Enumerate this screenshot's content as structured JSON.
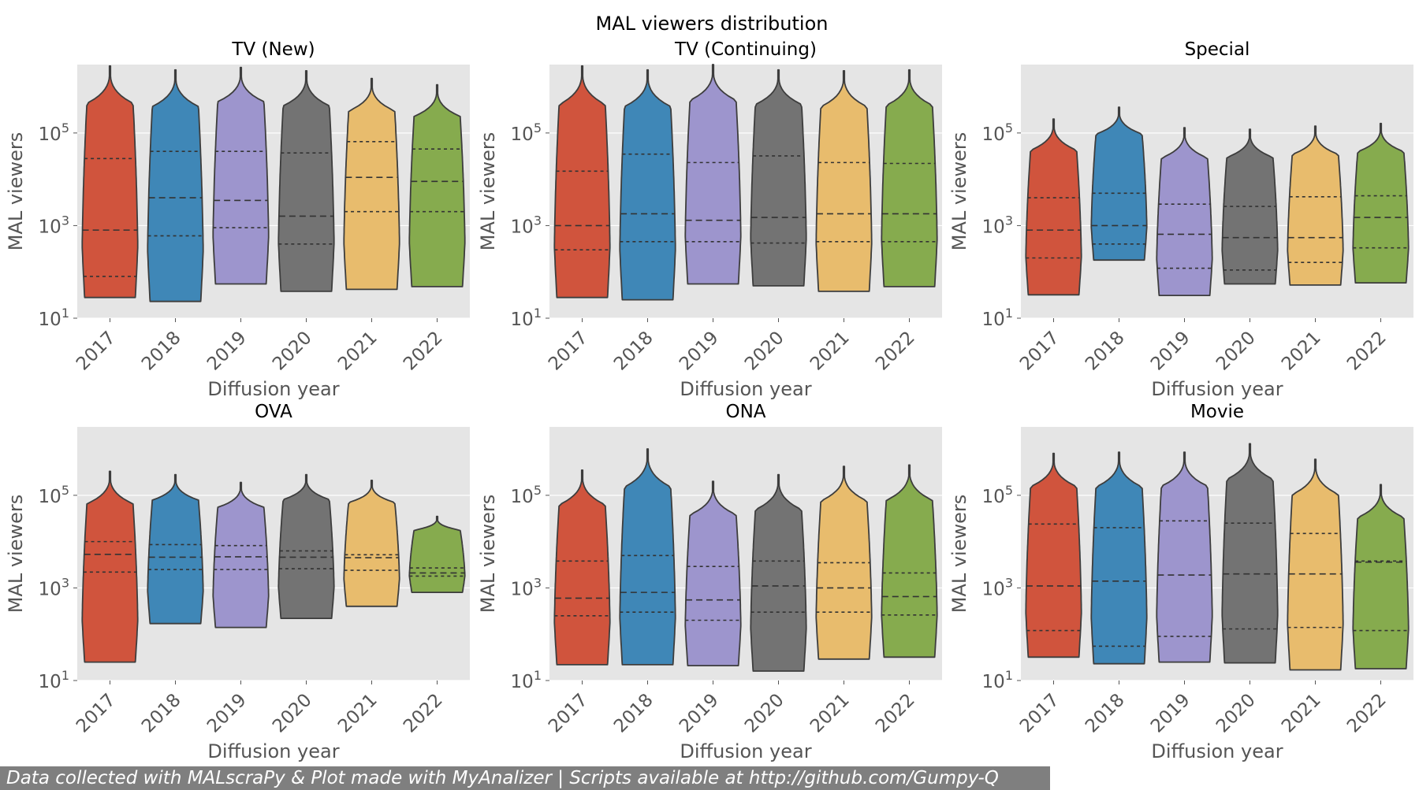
{
  "figure_title": "MAL viewers distribution",
  "footer_text": "Data collected with MALscraPy & Plot made with MyAnalizer | Scripts available at http://github.com/Gumpy-Q",
  "colors": [
    "#d0543d",
    "#3f87b7",
    "#9d95cd",
    "#737373",
    "#e8bc6d",
    "#86ab4e"
  ],
  "chart_data": [
    {
      "type": "violin",
      "title": "TV (New)",
      "xlabel": "Diffusion year",
      "ylabel": "MAL viewers",
      "yscale": "log",
      "ylim": [
        10,
        3000000
      ],
      "yticks": [
        "10^1",
        "10^3",
        "10^5"
      ],
      "categories": [
        "2017",
        "2018",
        "2019",
        "2020",
        "2021",
        "2022"
      ],
      "series": [
        {
          "category": "2017",
          "min": 28,
          "max": 2800000,
          "q1": 80,
          "median": 800,
          "q3": 28000
        },
        {
          "category": "2018",
          "min": 23,
          "max": 2300000,
          "q1": 600,
          "median": 4000,
          "q3": 40000
        },
        {
          "category": "2019",
          "min": 55,
          "max": 2600000,
          "q1": 900,
          "median": 3500,
          "q3": 40000
        },
        {
          "category": "2020",
          "min": 38,
          "max": 2200000,
          "q1": 400,
          "median": 1600,
          "q3": 37000
        },
        {
          "category": "2021",
          "min": 42,
          "max": 1500000,
          "q1": 2000,
          "median": 11000,
          "q3": 65000
        },
        {
          "category": "2022",
          "min": 48,
          "max": 1100000,
          "q1": 2000,
          "median": 9000,
          "q3": 45000
        }
      ]
    },
    {
      "type": "violin",
      "title": "TV (Continuing)",
      "xlabel": "Diffusion year",
      "ylabel": "MAL viewers",
      "yscale": "log",
      "ylim": [
        10,
        3000000
      ],
      "yticks": [
        "10^1",
        "10^3",
        "10^5"
      ],
      "categories": [
        "2017",
        "2018",
        "2019",
        "2020",
        "2021",
        "2022"
      ],
      "series": [
        {
          "category": "2017",
          "min": 28,
          "max": 2800000,
          "q1": 300,
          "median": 1000,
          "q3": 15000
        },
        {
          "category": "2018",
          "min": 25,
          "max": 2300000,
          "q1": 450,
          "median": 1800,
          "q3": 35000
        },
        {
          "category": "2019",
          "min": 55,
          "max": 3000000,
          "q1": 450,
          "median": 1300,
          "q3": 23000
        },
        {
          "category": "2020",
          "min": 50,
          "max": 2300000,
          "q1": 420,
          "median": 1500,
          "q3": 32000
        },
        {
          "category": "2021",
          "min": 38,
          "max": 2200000,
          "q1": 450,
          "median": 1800,
          "q3": 23000
        },
        {
          "category": "2022",
          "min": 48,
          "max": 2300000,
          "q1": 450,
          "median": 1800,
          "q3": 22000
        }
      ]
    },
    {
      "type": "violin",
      "title": "Special",
      "xlabel": "Diffusion year",
      "ylabel": "MAL viewers",
      "yscale": "log",
      "ylim": [
        10,
        3000000
      ],
      "yticks": [
        "10^1",
        "10^3",
        "10^5"
      ],
      "categories": [
        "2017",
        "2018",
        "2019",
        "2020",
        "2021",
        "2022"
      ],
      "series": [
        {
          "category": "2017",
          "min": 32,
          "max": 200000,
          "q1": 200,
          "median": 800,
          "q3": 4000
        },
        {
          "category": "2018",
          "min": 180,
          "max": 360000,
          "q1": 400,
          "median": 1000,
          "q3": 5000
        },
        {
          "category": "2019",
          "min": 31,
          "max": 130000,
          "q1": 120,
          "median": 650,
          "q3": 2900
        },
        {
          "category": "2020",
          "min": 55,
          "max": 120000,
          "q1": 110,
          "median": 550,
          "q3": 2600
        },
        {
          "category": "2021",
          "min": 52,
          "max": 140000,
          "q1": 160,
          "median": 550,
          "q3": 4200
        },
        {
          "category": "2022",
          "min": 58,
          "max": 160000,
          "q1": 330,
          "median": 1500,
          "q3": 4400
        }
      ]
    },
    {
      "type": "violin",
      "title": "OVA",
      "xlabel": "Diffusion year",
      "ylabel": "MAL viewers",
      "yscale": "log",
      "ylim": [
        10,
        3000000
      ],
      "yticks": [
        "10^1",
        "10^3",
        "10^5"
      ],
      "categories": [
        "2017",
        "2018",
        "2019",
        "2020",
        "2021",
        "2022"
      ],
      "series": [
        {
          "category": "2017",
          "min": 25,
          "max": 330000,
          "q1": 2200,
          "median": 5300,
          "q3": 10000
        },
        {
          "category": "2018",
          "min": 170,
          "max": 280000,
          "q1": 2500,
          "median": 4600,
          "q3": 8600
        },
        {
          "category": "2019",
          "min": 140,
          "max": 190000,
          "q1": 2500,
          "median": 4700,
          "q3": 8200
        },
        {
          "category": "2020",
          "min": 220,
          "max": 280000,
          "q1": 2600,
          "median": 4600,
          "q3": 6300
        },
        {
          "category": "2021",
          "min": 400,
          "max": 210000,
          "q1": 2400,
          "median": 4500,
          "q3": 5200
        },
        {
          "category": "2022",
          "min": 800,
          "max": 35000,
          "q1": 1800,
          "median": 2100,
          "q3": 2700
        }
      ]
    },
    {
      "type": "violin",
      "title": "ONA",
      "xlabel": "Diffusion year",
      "ylabel": "MAL viewers",
      "yscale": "log",
      "ylim": [
        10,
        3000000
      ],
      "yticks": [
        "10^1",
        "10^3",
        "10^5"
      ],
      "categories": [
        "2017",
        "2018",
        "2019",
        "2020",
        "2021",
        "2022"
      ],
      "series": [
        {
          "category": "2017",
          "min": 22,
          "max": 350000,
          "q1": 250,
          "median": 600,
          "q3": 3800
        },
        {
          "category": "2018",
          "min": 22,
          "max": 1000000,
          "q1": 300,
          "median": 800,
          "q3": 5000
        },
        {
          "category": "2019",
          "min": 21,
          "max": 200000,
          "q1": 200,
          "median": 550,
          "q3": 2900
        },
        {
          "category": "2020",
          "min": 16,
          "max": 280000,
          "q1": 300,
          "median": 1100,
          "q3": 3800
        },
        {
          "category": "2021",
          "min": 29,
          "max": 420000,
          "q1": 300,
          "median": 1000,
          "q3": 3500
        },
        {
          "category": "2022",
          "min": 32,
          "max": 450000,
          "q1": 260,
          "median": 650,
          "q3": 2100
        }
      ]
    },
    {
      "type": "violin",
      "title": "Movie",
      "xlabel": "Diffusion year",
      "ylabel": "MAL viewers",
      "yscale": "log",
      "ylim": [
        10,
        3000000
      ],
      "yticks": [
        "10^1",
        "10^3",
        "10^5"
      ],
      "categories": [
        "2017",
        "2018",
        "2019",
        "2020",
        "2021",
        "2022"
      ],
      "series": [
        {
          "category": "2017",
          "min": 32,
          "max": 800000,
          "q1": 120,
          "median": 1100,
          "q3": 24000
        },
        {
          "category": "2018",
          "min": 23,
          "max": 850000,
          "q1": 55,
          "median": 1400,
          "q3": 20000
        },
        {
          "category": "2019",
          "min": 25,
          "max": 850000,
          "q1": 90,
          "median": 1900,
          "q3": 28000
        },
        {
          "category": "2020",
          "min": 24,
          "max": 1300000,
          "q1": 130,
          "median": 2000,
          "q3": 25000
        },
        {
          "category": "2021",
          "min": 17,
          "max": 600000,
          "q1": 140,
          "median": 2000,
          "q3": 15000
        },
        {
          "category": "2022",
          "min": 18,
          "max": 170000,
          "q1": 120,
          "median": 3600,
          "q3": 3800
        }
      ]
    }
  ]
}
